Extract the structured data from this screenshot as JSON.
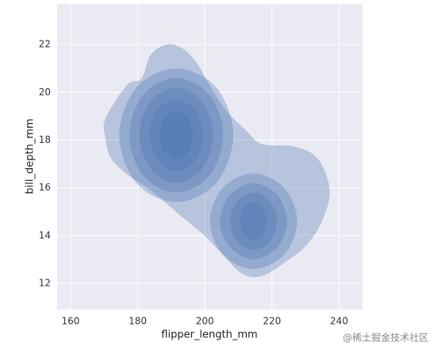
{
  "chart_data": {
    "type": "kde",
    "x_label": "flipper_length_mm",
    "y_label": "bill_depth_mm",
    "xlim": [
      156,
      247
    ],
    "ylim": [
      10.9,
      23.7
    ],
    "xticks": [
      160,
      180,
      200,
      220,
      240
    ],
    "yticks": [
      12,
      14,
      16,
      18,
      20,
      22
    ],
    "grid": true,
    "color": "#4c72b0",
    "contours": [
      {
        "x": [
          170.4,
          176.8,
          181.1,
          183.9,
          188.7,
          193.4,
          197.6,
          201.7,
          206.4,
          212.3,
          217.0,
          226.5,
          233.6,
          237.2,
          234.8,
          230.1,
          224.1,
          217.0,
          211.1,
          205.2,
          199.3,
          192.2,
          183.9,
          176.8,
          172.1,
          170.4
        ],
        "y": [
          18.9,
          20.3,
          20.57,
          21.57,
          22.0,
          21.83,
          21.23,
          20.23,
          19.23,
          18.4,
          17.83,
          17.73,
          17.23,
          15.9,
          14.57,
          13.57,
          12.9,
          12.3,
          12.4,
          13.23,
          14.07,
          14.9,
          15.9,
          16.57,
          17.23,
          18.07
        ]
      },
      {
        "x": [
          208.5,
          203.4,
          191.5,
          179.6,
          174.5,
          179.6,
          191.5,
          203.4
        ],
        "y": [
          18.2,
          20.2,
          21.0,
          20.2,
          18.2,
          16.2,
          15.4,
          16.2
        ]
      },
      {
        "x": [
          227.5,
          223.6,
          214.5,
          205.4,
          201.5,
          205.4,
          214.5,
          223.6
        ],
        "y": [
          14.6,
          16.0,
          16.6,
          16.0,
          14.6,
          13.2,
          12.6,
          13.2
        ]
      },
      {
        "x": [
          205.5,
          201.3,
          191.5,
          181.7,
          177.5,
          181.7,
          191.5,
          201.3
        ],
        "y": [
          18.2,
          19.9,
          20.6,
          19.9,
          18.2,
          16.5,
          15.8,
          16.5
        ]
      },
      {
        "x": [
          224.5,
          221.5,
          214.5,
          207.5,
          204.5,
          207.5,
          214.5,
          221.5
        ],
        "y": [
          14.6,
          15.7,
          16.2,
          15.7,
          14.6,
          13.5,
          13.0,
          13.5
        ]
      },
      {
        "x": [
          202.5,
          199.2,
          191.5,
          183.8,
          180.5,
          183.8,
          191.5,
          199.2
        ],
        "y": [
          18.2,
          19.6,
          20.2,
          19.6,
          18.2,
          16.8,
          16.2,
          16.8
        ]
      },
      {
        "x": [
          221.5,
          219.4,
          214.5,
          209.6,
          207.5,
          209.6,
          214.5,
          219.4
        ],
        "y": [
          14.6,
          15.44,
          15.8,
          15.44,
          14.6,
          13.76,
          13.4,
          13.76
        ]
      },
      {
        "x": [
          199.5,
          197.1,
          191.5,
          185.9,
          183.5,
          185.9,
          191.5,
          197.1
        ],
        "y": [
          18.2,
          19.25,
          19.7,
          19.25,
          18.2,
          17.15,
          16.7,
          17.15
        ]
      },
      {
        "x": [
          218.5,
          217.3,
          214.5,
          211.7,
          210.5,
          211.7,
          214.5,
          217.3
        ],
        "y": [
          14.6,
          15.16,
          15.4,
          15.16,
          14.6,
          14.04,
          13.8,
          14.04
        ]
      },
      {
        "x": [
          196.5,
          195.0,
          191.5,
          188.0,
          186.5,
          188.0,
          191.5,
          195.0
        ],
        "y": [
          18.2,
          18.9,
          19.2,
          18.9,
          18.2,
          17.5,
          17.2,
          17.5
        ]
      }
    ]
  },
  "watermark": "@稀土掘金技术社区"
}
